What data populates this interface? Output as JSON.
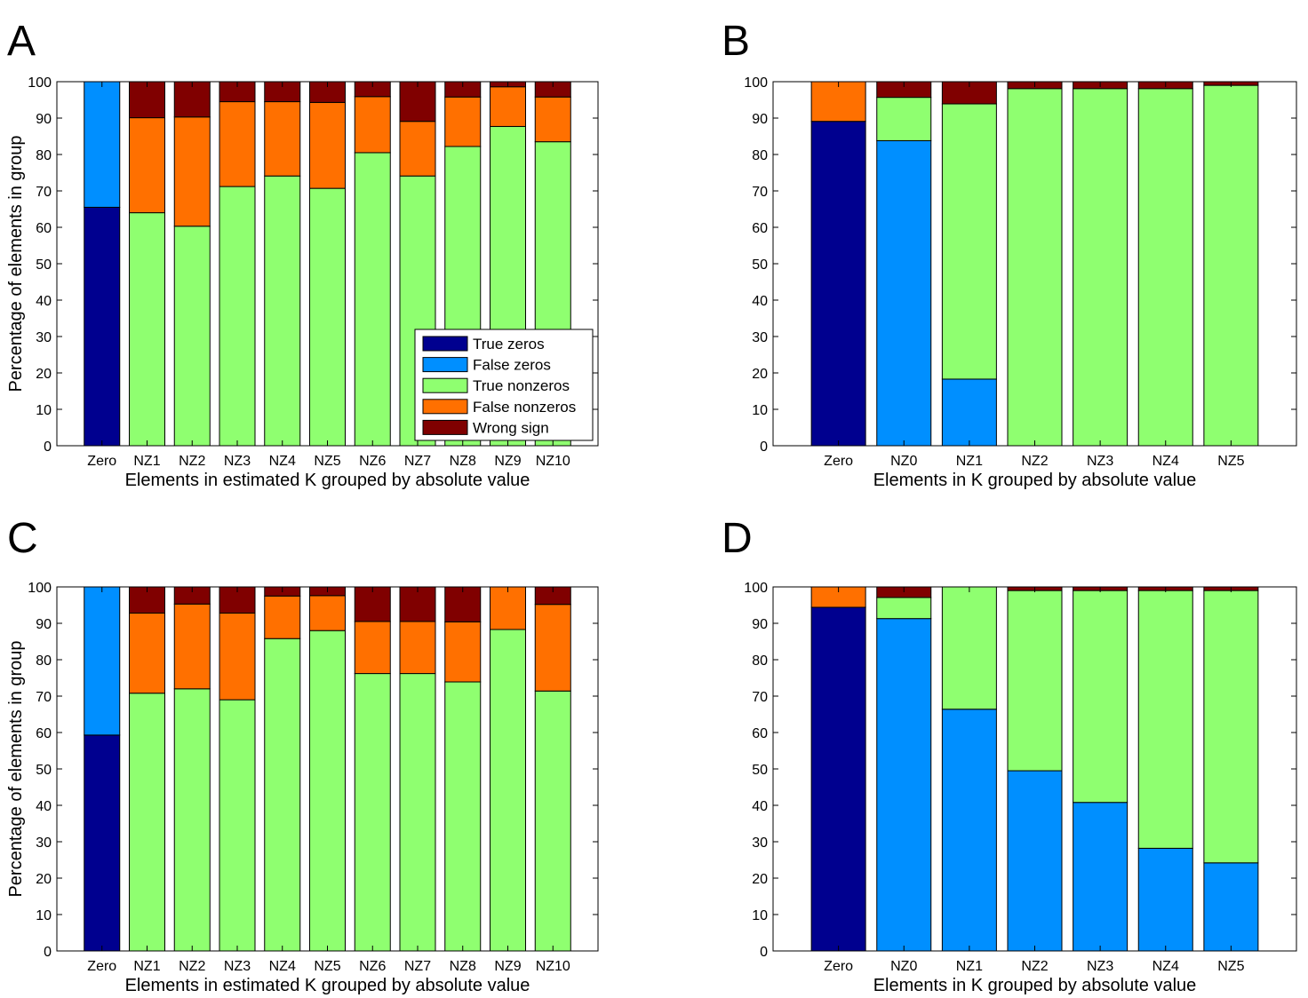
{
  "legend": {
    "entries": [
      {
        "key": "tz",
        "label": "True zeros"
      },
      {
        "key": "fz",
        "label": "False zeros"
      },
      {
        "key": "tn",
        "label": "True nonzeros"
      },
      {
        "key": "fn",
        "label": "False nonzeros"
      },
      {
        "key": "ws",
        "label": "Wrong sign"
      }
    ]
  },
  "colors": {
    "tz": "#00008f",
    "fz": "#008fff",
    "tn": "#8fff70",
    "fn": "#ff7000",
    "ws": "#800000"
  },
  "chart_data": [
    {
      "panel": "A",
      "type": "bar",
      "stacked": true,
      "xlabel": "Elements in estimated K grouped by absolute value",
      "ylabel": "Percentage of elements in group",
      "ylim": [
        0,
        100
      ],
      "yticks": [
        0,
        10,
        20,
        30,
        40,
        50,
        60,
        70,
        80,
        90,
        100
      ],
      "legend_position": "bottom-right",
      "categories": [
        "Zero",
        "NZ1",
        "NZ2",
        "NZ3",
        "NZ4",
        "NZ5",
        "NZ6",
        "NZ7",
        "NZ8",
        "NZ9",
        "NZ10"
      ],
      "series": [
        {
          "key": "tz",
          "name": "True zeros",
          "values": [
            65.5,
            0,
            0,
            0,
            0,
            0,
            0,
            0,
            0,
            0,
            0
          ]
        },
        {
          "key": "fz",
          "name": "False zeros",
          "values": [
            34.5,
            0,
            0,
            0,
            0,
            0,
            0,
            0,
            0,
            0,
            0
          ]
        },
        {
          "key": "tn",
          "name": "True nonzeros",
          "values": [
            0,
            64,
            60.3,
            71.2,
            74.1,
            70.7,
            80.5,
            74.1,
            82.2,
            87.7,
            83.5
          ]
        },
        {
          "key": "fn",
          "name": "False nonzeros",
          "values": [
            0,
            26.1,
            30,
            23.3,
            20.4,
            23.6,
            15.4,
            15,
            13.6,
            10.9,
            12.3
          ]
        },
        {
          "key": "ws",
          "name": "Wrong sign",
          "values": [
            0,
            9.9,
            9.7,
            5.5,
            5.5,
            5.7,
            4.1,
            10.9,
            4.2,
            1.4,
            4.2
          ]
        }
      ]
    },
    {
      "panel": "B",
      "type": "bar",
      "stacked": true,
      "xlabel": "Elements in K grouped by absolute value",
      "ylabel": "",
      "ylim": [
        0,
        100
      ],
      "yticks": [
        0,
        10,
        20,
        30,
        40,
        50,
        60,
        70,
        80,
        90,
        100
      ],
      "categories": [
        "Zero",
        "NZ0",
        "NZ1",
        "NZ2",
        "NZ3",
        "NZ4",
        "NZ5"
      ],
      "series": [
        {
          "key": "tz",
          "name": "True zeros",
          "values": [
            89.1,
            0,
            0,
            0,
            0,
            0,
            0
          ]
        },
        {
          "key": "fz",
          "name": "False zeros",
          "values": [
            0,
            83.8,
            18.3,
            0,
            0,
            0,
            0
          ]
        },
        {
          "key": "tn",
          "name": "True nonzeros",
          "values": [
            0,
            11.9,
            75.6,
            98.1,
            98.1,
            98.1,
            99
          ]
        },
        {
          "key": "fn",
          "name": "False nonzeros",
          "values": [
            10.9,
            0,
            0,
            0,
            0,
            0,
            0
          ]
        },
        {
          "key": "ws",
          "name": "Wrong sign",
          "values": [
            0,
            4.3,
            6.1,
            1.9,
            1.9,
            1.9,
            1
          ]
        }
      ]
    },
    {
      "panel": "C",
      "type": "bar",
      "stacked": true,
      "xlabel": "Elements in estimated K grouped by absolute value",
      "ylabel": "Percentage of elements in group",
      "ylim": [
        0,
        100
      ],
      "yticks": [
        0,
        10,
        20,
        30,
        40,
        50,
        60,
        70,
        80,
        90,
        100
      ],
      "categories": [
        "Zero",
        "NZ1",
        "NZ2",
        "NZ3",
        "NZ4",
        "NZ5",
        "NZ6",
        "NZ7",
        "NZ8",
        "NZ9",
        "NZ10"
      ],
      "series": [
        {
          "key": "tz",
          "name": "True zeros",
          "values": [
            59.3,
            0,
            0,
            0,
            0,
            0,
            0,
            0,
            0,
            0,
            0
          ]
        },
        {
          "key": "fz",
          "name": "False zeros",
          "values": [
            40.7,
            0,
            0,
            0,
            0,
            0,
            0,
            0,
            0,
            0,
            0
          ]
        },
        {
          "key": "tn",
          "name": "True nonzeros",
          "values": [
            0,
            70.8,
            72,
            69,
            85.8,
            88,
            76.2,
            76.2,
            73.9,
            88.3,
            71.4
          ]
        },
        {
          "key": "fn",
          "name": "False nonzeros",
          "values": [
            0,
            22,
            23.3,
            23.8,
            11.7,
            9.6,
            14.3,
            14.3,
            16.5,
            11.7,
            23.8
          ]
        },
        {
          "key": "ws",
          "name": "Wrong sign",
          "values": [
            0,
            7.2,
            4.7,
            7.2,
            2.5,
            2.4,
            9.5,
            9.5,
            9.6,
            0,
            4.8
          ]
        }
      ]
    },
    {
      "panel": "D",
      "type": "bar",
      "stacked": true,
      "xlabel": "Elements in K grouped by absolute value",
      "ylabel": "",
      "ylim": [
        0,
        100
      ],
      "yticks": [
        0,
        10,
        20,
        30,
        40,
        50,
        60,
        70,
        80,
        90,
        100
      ],
      "categories": [
        "Zero",
        "NZ0",
        "NZ1",
        "NZ2",
        "NZ3",
        "NZ4",
        "NZ5"
      ],
      "series": [
        {
          "key": "tz",
          "name": "True zeros",
          "values": [
            94.4,
            0,
            0,
            0,
            0,
            0,
            0
          ]
        },
        {
          "key": "fz",
          "name": "False zeros",
          "values": [
            0,
            91.3,
            66.4,
            49.5,
            40.8,
            28.2,
            24.2
          ]
        },
        {
          "key": "tn",
          "name": "True nonzeros",
          "values": [
            0,
            5.8,
            33.6,
            49.5,
            58.2,
            70.8,
            74.8
          ]
        },
        {
          "key": "fn",
          "name": "False nonzeros",
          "values": [
            5.6,
            0,
            0,
            0,
            0,
            0,
            0
          ]
        },
        {
          "key": "ws",
          "name": "Wrong sign",
          "values": [
            0,
            2.9,
            0,
            1,
            1,
            1,
            1
          ]
        }
      ]
    }
  ]
}
